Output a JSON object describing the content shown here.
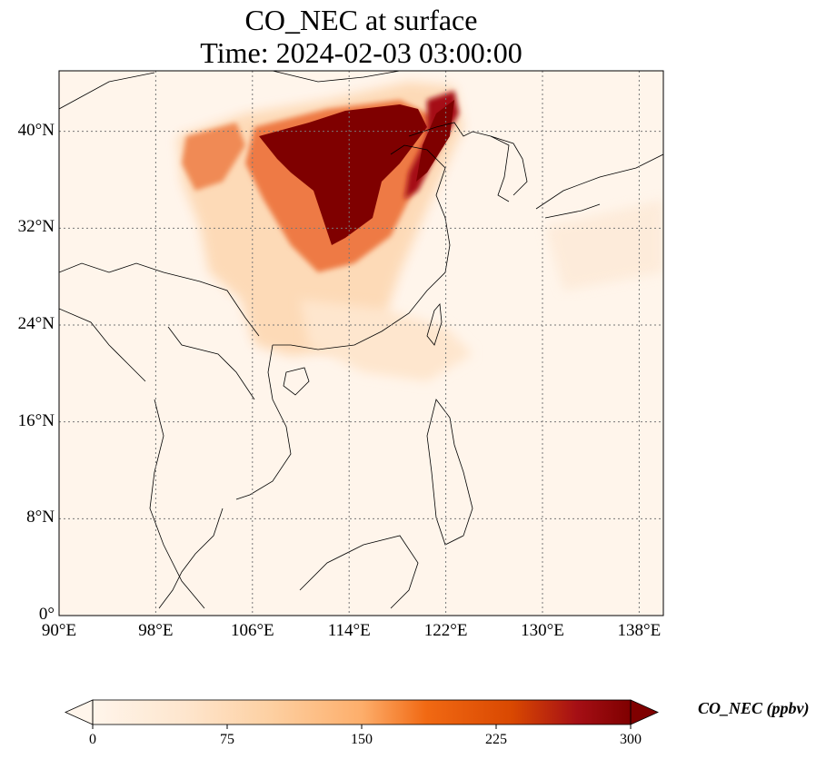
{
  "title_line1": "CO_NEC at surface",
  "title_line2": "Time: 2024-02-03 03:00:00",
  "map": {
    "extent": {
      "lon_min": 90,
      "lon_max": 140,
      "lat_min": 0,
      "lat_max": 45
    },
    "lon_ticks": [
      90,
      98,
      106,
      114,
      122,
      130,
      138
    ],
    "lat_ticks": [
      0,
      8,
      16,
      24,
      32,
      40
    ],
    "lon_labels": [
      "90°E",
      "98°E",
      "106°E",
      "114°E",
      "122°E",
      "130°E",
      "138°E"
    ],
    "lat_labels": [
      "0°",
      "8°N",
      "16°N",
      "24°N",
      "32°N",
      "40°N"
    ],
    "gridlines": true
  },
  "colorbar": {
    "label": "CO_NEC (ppbv)",
    "min": 0,
    "max": 300,
    "ticks": [
      "0",
      "75",
      "150",
      "225",
      "300"
    ],
    "extend": "both",
    "colors": [
      "#fff5eb",
      "#fdd0a2",
      "#fdae6b",
      "#fd8d3c",
      "#e6550d",
      "#a63603",
      "#7f0000"
    ]
  },
  "colors": {
    "land_border": "#000000",
    "grid": "#777777",
    "background": "#fff5eb"
  }
}
